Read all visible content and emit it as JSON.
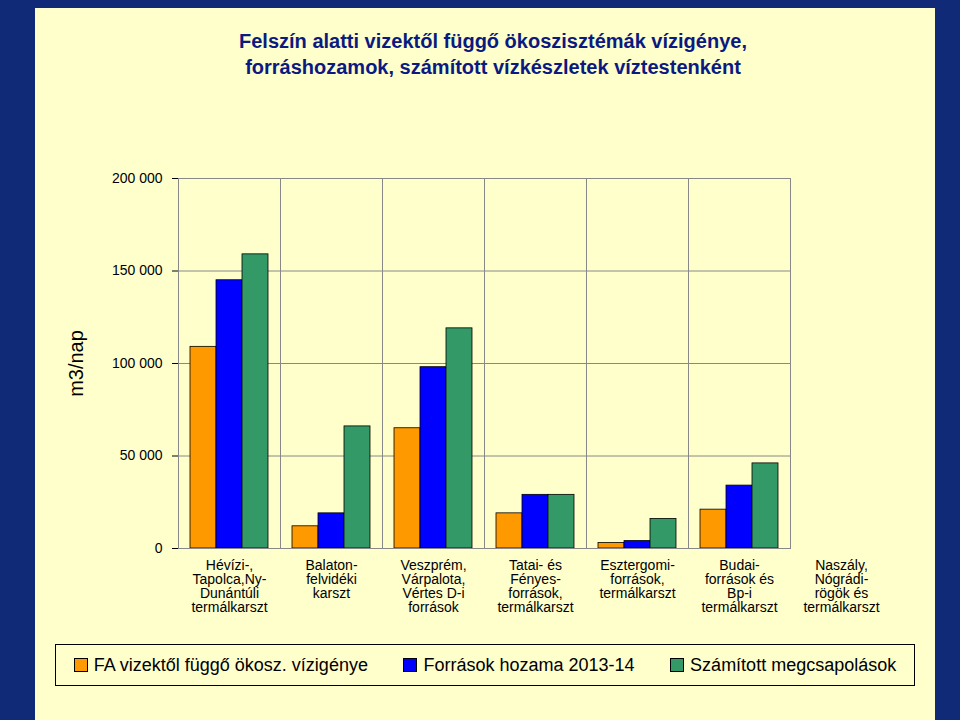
{
  "chart_data": {
    "type": "bar",
    "title": "Felszín alatti vizektől függő ökoszisztémák vízigénye,\nforráshozamok, számított vízkészletek víztestenként",
    "y_label": "m3/nap",
    "categories": [
      "Hévízi-,\nTapolca,Ny-\nDunántúli\ntermálkarszt",
      "Balaton-\nfelvidéki\nkarszt",
      "Veszprém,\nVárpalota,\nVértes D-i\nforrások",
      "Tatai- és\nFényes-\nforrások,\ntermálkarszt",
      "Esztergomi-\nforrások,\ntermálkarszt",
      "Budai-\nforrások és\nBp-i\ntermálkarszt",
      "Naszály,\nNógrádi-\nrögök és\ntermálkarszt"
    ],
    "series": [
      {
        "name": "FA vizektől függő ökosz. vízigénye",
        "color": "#ff9900",
        "values": [
          109000,
          12000,
          65000,
          19000,
          3000,
          21000,
          null
        ]
      },
      {
        "name": "Források hozama 2013-14",
        "color": "#0000ff",
        "values": [
          145000,
          19000,
          98000,
          29000,
          4000,
          34000,
          null
        ]
      },
      {
        "name": "Számított megcsapolások",
        "color": "#339966",
        "values": [
          159000,
          66000,
          119000,
          29000,
          16000,
          46000,
          null
        ]
      }
    ],
    "ylim": [
      0,
      200000
    ],
    "yticks": [
      0,
      {
        "value": 50000,
        "label": "50 000"
      },
      {
        "value": 100000,
        "label": "100 000"
      },
      {
        "value": 150000,
        "label": "150 000"
      },
      {
        "value": 200000,
        "label": "200 000"
      }
    ],
    "grid": true,
    "legend": "bottom"
  }
}
